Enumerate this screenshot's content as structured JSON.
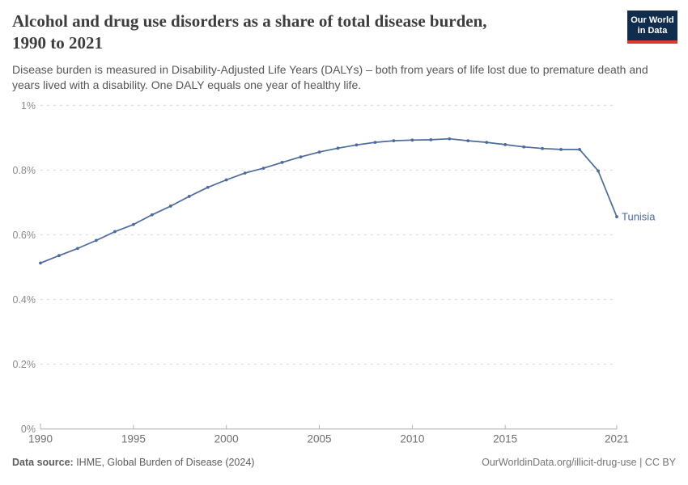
{
  "header": {
    "title_line1": "Alcohol and drug use disorders as a share of total disease burden,",
    "title_line2": "1990 to 2021",
    "subtitle": "Disease burden is measured in Disability-Adjusted Life Years (DALYs) – both from years of life lost due to premature death and years lived with a disability. One DALY equals one year of healthy life.",
    "logo": {
      "line1": "Our World",
      "line2": "in Data",
      "bg_color": "#102D4E",
      "accent_color": "#DC3A2E"
    }
  },
  "chart_data": {
    "type": "line",
    "title": "Alcohol and drug use disorders as a share of total disease burden, 1990 to 2021",
    "xlabel": "",
    "ylabel": "",
    "unit": "%",
    "xlim": [
      1990,
      2021
    ],
    "ylim": [
      0,
      1
    ],
    "grid": "horizontal dashed",
    "legend_position": "end-of-line label",
    "x_ticks": [
      1990,
      1995,
      2000,
      2005,
      2010,
      2015,
      2021
    ],
    "y_ticks": [
      {
        "value": 0,
        "label": "0%"
      },
      {
        "value": 0.2,
        "label": "0.2%"
      },
      {
        "value": 0.4,
        "label": "0.4%"
      },
      {
        "value": 0.6,
        "label": "0.6%"
      },
      {
        "value": 0.8,
        "label": "0.8%"
      },
      {
        "value": 1,
        "label": "1%"
      }
    ],
    "series": [
      {
        "name": "Tunisia",
        "color": "#4C6A9C",
        "x": [
          1990,
          1991,
          1992,
          1993,
          1994,
          1995,
          1996,
          1997,
          1998,
          1999,
          2000,
          2001,
          2002,
          2003,
          2004,
          2005,
          2006,
          2007,
          2008,
          2009,
          2010,
          2011,
          2012,
          2013,
          2014,
          2015,
          2016,
          2017,
          2018,
          2019,
          2020,
          2021
        ],
        "values": [
          0.513,
          0.536,
          0.558,
          0.583,
          0.61,
          0.632,
          0.662,
          0.689,
          0.719,
          0.747,
          0.77,
          0.791,
          0.806,
          0.824,
          0.841,
          0.856,
          0.868,
          0.878,
          0.886,
          0.891,
          0.893,
          0.894,
          0.897,
          0.891,
          0.886,
          0.879,
          0.872,
          0.867,
          0.864,
          0.864,
          0.798,
          0.656
        ]
      }
    ]
  },
  "footer": {
    "source_label": "Data source:",
    "source_text": " IHME, Global Burden of Disease (2024)",
    "credit": "OurWorldinData.org/illicit-drug-use | CC BY"
  }
}
